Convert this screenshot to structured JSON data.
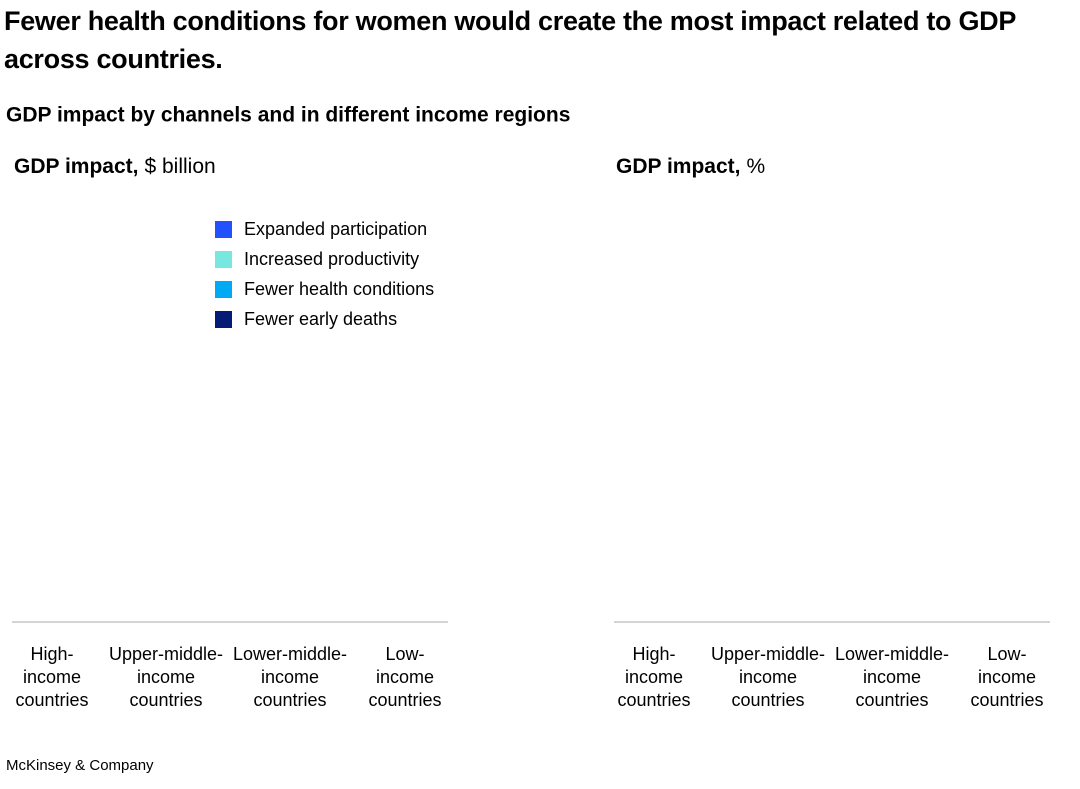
{
  "title": "Fewer health conditions for women would create the most impact related to GDP across countries.",
  "subtitle": "GDP impact by channels and in different income regions",
  "legend": [
    {
      "name": "Expanded participation",
      "color": "#2251ff"
    },
    {
      "name": "Increased productivity",
      "color": "#76e8e0"
    },
    {
      "name": "Fewer health conditions",
      "color": "#00a9f4"
    },
    {
      "name": "Fewer early deaths",
      "color": "#051c74"
    }
  ],
  "panels": [
    {
      "label": "GDP impact,",
      "unit": "$ billion",
      "categories": [
        [
          "High-",
          "income",
          "countries"
        ],
        [
          "Upper-middle-",
          "income",
          "countries"
        ],
        [
          "Lower-middle-",
          "income",
          "countries"
        ],
        [
          "Low-",
          "income",
          "countries"
        ]
      ]
    },
    {
      "label": "GDP impact,",
      "unit": "%",
      "categories": [
        [
          "High-",
          "income",
          "countries"
        ],
        [
          "Upper-middle-",
          "income",
          "countries"
        ],
        [
          "Lower-middle-",
          "income",
          "countries"
        ],
        [
          "Low-",
          "income",
          "countries"
        ]
      ]
    }
  ],
  "footer": "McKinsey & Company"
}
